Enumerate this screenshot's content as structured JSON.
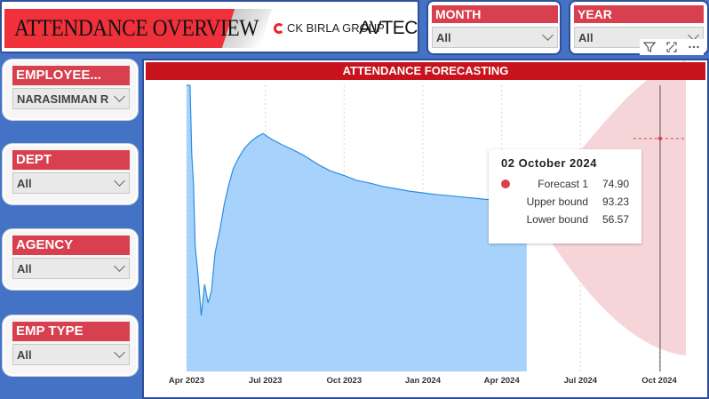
{
  "header": {
    "title": "ATTENDANCE OVERVIEW",
    "logo_ck": "CK BIRLA GROUP",
    "logo_avtec": "AVTEC",
    "logo_avtec_mark": "®"
  },
  "top_slicers": [
    {
      "label": "MONTH",
      "value": "All"
    },
    {
      "label": "YEAR",
      "value": "All"
    }
  ],
  "visual_icons": [
    "filter-icon",
    "focus-mode-icon",
    "more-options-icon"
  ],
  "left_slicers": [
    {
      "label": "EMPLOYEE...",
      "value": "NARASIMMAN R"
    },
    {
      "label": "DEPT",
      "value": "All"
    },
    {
      "label": "AGENCY",
      "value": "All"
    },
    {
      "label": "EMP TYPE",
      "value": "All"
    }
  ],
  "chart": {
    "title": "ATTENDANCE FORECASTING"
  },
  "tooltip": {
    "date": "02 October 2024",
    "rows": [
      {
        "label": "Forecast 1",
        "value": "74.90"
      },
      {
        "label": "Upper bound",
        "value": "93.23"
      },
      {
        "label": "Lower bound",
        "value": "56.57"
      }
    ]
  },
  "colors": {
    "area_fill": "#a7d2fb",
    "area_line": "#2b8de2",
    "band_fill": "#f6d5d8",
    "accent_red": "#d8404f",
    "title_red": "#c8131c"
  },
  "chart_data": {
    "type": "area",
    "title": "ATTENDANCE FORECASTING",
    "x_tick_labels": [
      "Apr 2023",
      "Jul 2023",
      "Oct 2023",
      "Jan 2024",
      "Apr 2024",
      "Jul 2024",
      "Oct 2024"
    ],
    "grid": true,
    "y_axis_visible": false,
    "series": [
      {
        "name": "",
        "x": [
          "2023-04-01",
          "2023-04-05",
          "2023-04-07",
          "2023-04-09",
          "2023-04-11",
          "2023-04-14",
          "2023-04-18",
          "2023-04-22",
          "2023-04-26",
          "2023-04-30",
          "2023-05-04",
          "2023-05-10",
          "2023-05-15",
          "2023-05-20",
          "2023-05-25",
          "2023-06-01",
          "2023-06-08",
          "2023-06-15",
          "2023-06-22",
          "2023-06-29",
          "2023-07-04",
          "2023-07-10",
          "2023-07-20",
          "2023-08-01",
          "2023-08-15",
          "2023-09-01",
          "2023-09-15",
          "2023-10-01",
          "2023-10-15",
          "2023-11-01",
          "2023-11-15",
          "2023-12-01",
          "2023-12-15",
          "2024-01-01",
          "2024-01-15",
          "2024-02-01",
          "2024-02-15",
          "2024-03-01",
          "2024-03-15",
          "2024-04-01",
          "2024-04-15",
          "2024-04-30"
        ],
        "values": [
          92,
          92,
          70,
          60,
          40,
          32,
          18,
          28,
          22,
          26,
          38,
          46,
          54,
          60,
          65,
          69,
          72,
          74,
          75.5,
          76.5,
          75.5,
          74.5,
          73,
          71.5,
          69.5,
          66.5,
          64.5,
          63,
          61.5,
          60.5,
          59.5,
          58.7,
          58,
          57.4,
          56.9,
          56.5,
          56.1,
          55.7,
          55.3,
          54.9,
          54.6,
          54.3
        ]
      },
      {
        "name": "Forecast 1",
        "x": [
          "2024-10-02"
        ],
        "values": [
          74.9
        ],
        "upper_bound": [
          93.23
        ],
        "lower_bound": [
          56.57
        ]
      }
    ]
  }
}
